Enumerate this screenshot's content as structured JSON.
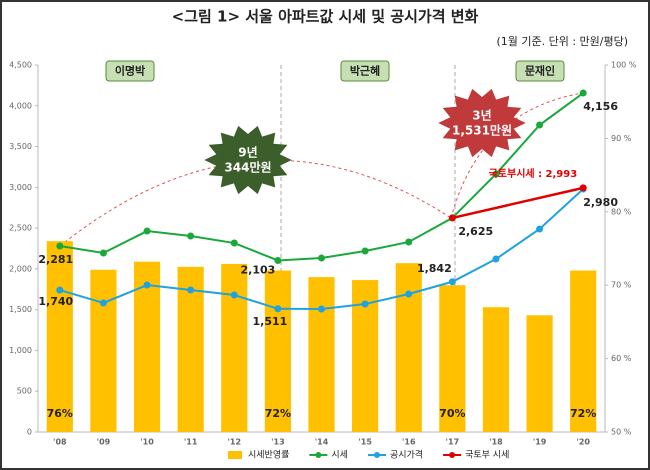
{
  "chart_data": {
    "type": "bar-line",
    "title": "<그림 1> 서울 아파트값 시세 및 공시가격 변화",
    "subtitle": "(1월 기준. 단위 : 만원/평당)",
    "categories": [
      "'08",
      "'09",
      "'10",
      "'11",
      "'12",
      "'13",
      "'14",
      "'15",
      "'16",
      "'17",
      "'18",
      "'19",
      "'20"
    ],
    "series": [
      {
        "name": "시세반영률",
        "kind": "bar",
        "axis": "y2",
        "color": "#ffc000",
        "values": [
          76,
          72.1,
          73.2,
          72.5,
          72.9,
          72,
          71.1,
          70.7,
          73,
          70,
          67,
          65.9,
          72
        ],
        "value_labels": [
          "76%",
          null,
          null,
          null,
          null,
          "72%",
          null,
          null,
          null,
          "70%",
          null,
          null,
          "72%"
        ]
      },
      {
        "name": "시세",
        "kind": "line",
        "color": "#1aa83a",
        "values": [
          2281,
          2195,
          2464,
          2403,
          2317,
          2103,
          2133,
          2219,
          2330,
          2625,
          3163,
          3764,
          4156
        ],
        "value_labels": [
          "2,281",
          null,
          null,
          null,
          null,
          "2,103",
          null,
          null,
          null,
          "2,625",
          null,
          null,
          "4,156"
        ]
      },
      {
        "name": "공시가격",
        "kind": "line",
        "color": "#1fa3e0",
        "values": [
          1740,
          1582,
          1802,
          1741,
          1680,
          1511,
          1508,
          1569,
          1692,
          1842,
          2121,
          2489,
          2980
        ],
        "value_labels": [
          "1,740",
          null,
          null,
          null,
          null,
          "1,511",
          null,
          null,
          null,
          "1,842",
          null,
          null,
          "2,980"
        ]
      },
      {
        "name": "국토부 시세",
        "kind": "line",
        "color": "#e00000",
        "values": [
          null,
          null,
          null,
          null,
          null,
          null,
          null,
          null,
          null,
          2625,
          null,
          null,
          2993
        ],
        "value_labels": [
          null,
          null,
          null,
          null,
          null,
          null,
          null,
          null,
          null,
          null,
          null,
          null,
          "국토부시세 : 2,993"
        ]
      }
    ],
    "ylim": [
      0,
      4500
    ],
    "yticks": [
      0,
      {
        "value": 500,
        "label": "500"
      },
      {
        "value": 1000,
        "label": "1,000"
      },
      {
        "value": 1500,
        "label": "1,500"
      },
      {
        "value": 2000,
        "label": "2,000"
      },
      {
        "value": 2500,
        "label": "2,500"
      },
      {
        "value": 3000,
        "label": "3,000"
      },
      {
        "value": 3500,
        "label": "3,500"
      },
      {
        "value": 4000,
        "label": "4,000"
      },
      {
        "value": 4500,
        "label": "4,500"
      }
    ],
    "y2lim": [
      50,
      100
    ],
    "y2ticks": [
      {
        "value": 50,
        "label": "50 %"
      },
      {
        "value": 60,
        "label": "60 %"
      },
      {
        "value": 70,
        "label": "70 %"
      },
      {
        "value": 80,
        "label": "80 %"
      },
      {
        "value": 90,
        "label": "90 %"
      },
      {
        "value": 100,
        "label": "100 %"
      }
    ],
    "grid": false,
    "legend": "bottom",
    "eras": [
      "이명박",
      "박근혜",
      "문재인"
    ],
    "bursts": [
      [
        "9년",
        "344만원"
      ],
      [
        "3년",
        "1,531만원"
      ]
    ]
  }
}
